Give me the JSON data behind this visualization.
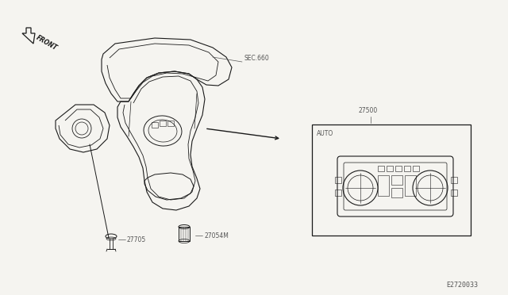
{
  "bg_color": "#f5f4f0",
  "line_color": "#1a1a1a",
  "line_color2": "#555555",
  "labels": {
    "front": "FRONT",
    "sec660": "SEC.660",
    "part27500": "27500",
    "part27705": "27705",
    "part27054m": "27054M",
    "auto": "AUTO"
  },
  "diagram_code": "E2720033"
}
